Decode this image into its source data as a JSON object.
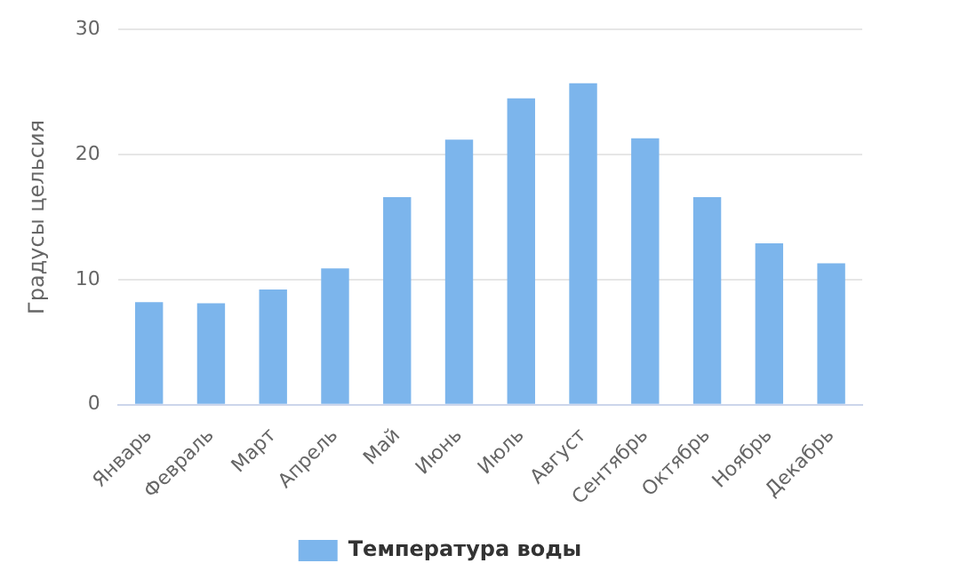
{
  "chart_data": {
    "type": "bar",
    "ylabel": "Градусы цельсия",
    "categories": [
      "Январь",
      "Февраль",
      "Март",
      "Апрель",
      "Май",
      "Июнь",
      "Июль",
      "Август",
      "Сентябрь",
      "Октябрь",
      "Ноябрь",
      "Декабрь"
    ],
    "series": [
      {
        "name": "Температура воды",
        "color": "#7cb5ec",
        "values": [
          8.2,
          8.1,
          9.2,
          10.9,
          16.6,
          21.2,
          24.5,
          25.7,
          21.3,
          16.6,
          12.9,
          11.3
        ]
      }
    ],
    "ylim": [
      0,
      30
    ],
    "yticks": [
      0,
      10,
      20,
      30
    ],
    "grid": "y",
    "legend": "bottom"
  }
}
